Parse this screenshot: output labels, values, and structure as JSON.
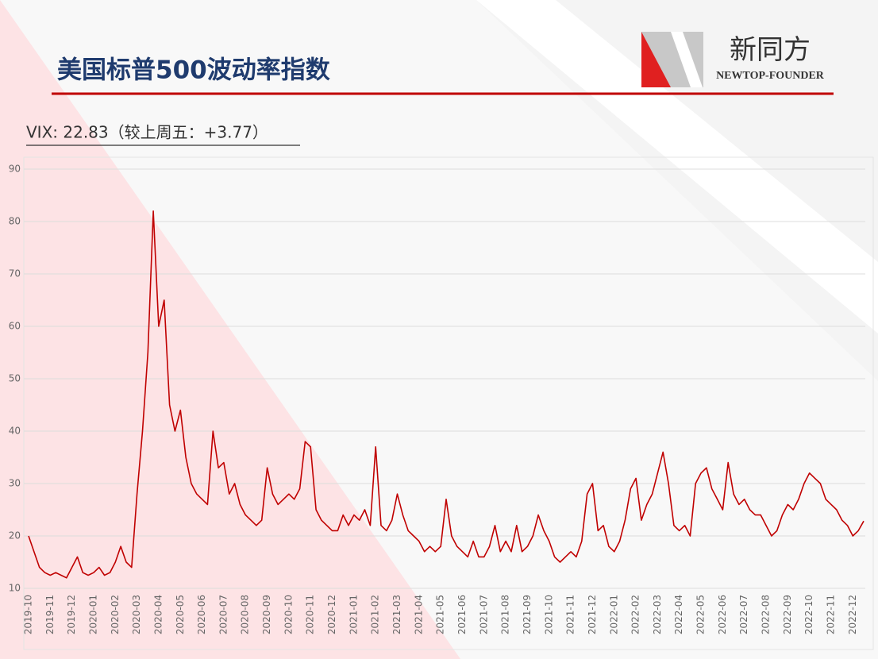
{
  "logo": {
    "name": "新同方",
    "subtitle": "NEWTOP-FOUNDER"
  },
  "chart_data": {
    "type": "line",
    "title": "美国标普500波动率指数",
    "subtitle": "VIX: 22.83（较上周五：+3.77）",
    "categories": [
      "2019-10",
      null,
      null,
      null,
      "2019-11",
      null,
      null,
      null,
      "2019-12",
      null,
      null,
      null,
      "2020-01",
      null,
      null,
      null,
      "2020-02",
      null,
      null,
      null,
      "2020-03",
      null,
      null,
      null,
      "2020-04",
      null,
      null,
      null,
      "2020-05",
      null,
      null,
      null,
      "2020-06",
      null,
      null,
      null,
      "2020-07",
      null,
      null,
      null,
      "2020-08",
      null,
      null,
      null,
      "2020-09",
      null,
      null,
      null,
      "2020-10",
      null,
      null,
      null,
      "2020-11",
      null,
      null,
      null,
      "2020-12",
      null,
      null,
      null,
      "2021-01",
      null,
      null,
      null,
      "2021-02",
      null,
      null,
      null,
      "2021-03",
      null,
      null,
      null,
      "2021-04",
      null,
      null,
      null,
      "2021-05",
      null,
      null,
      null,
      "2021-06",
      null,
      null,
      null,
      "2021-07",
      null,
      null,
      null,
      "2021-08",
      null,
      null,
      null,
      "2021-09",
      null,
      null,
      null,
      "2021-10",
      null,
      null,
      null,
      "2021-11",
      null,
      null,
      null,
      "2021-12",
      null,
      null,
      null,
      "2022-01",
      null,
      null,
      null,
      "2022-02",
      null,
      null,
      null,
      "2022-03",
      null,
      null,
      null,
      "2022-04",
      null,
      null,
      null,
      "2022-05",
      null,
      null,
      null,
      "2022-06",
      null,
      null,
      null,
      "2022-07",
      null,
      null,
      null,
      "2022-08",
      null,
      null,
      null,
      "2022-09",
      null,
      null,
      null,
      "2022-10",
      null,
      null,
      null,
      "2022-11",
      null,
      null,
      null,
      "2022-12",
      null,
      null
    ],
    "series": [
      {
        "name": "VIX",
        "color": "#c00000",
        "values": [
          20,
          17,
          14,
          13,
          12.5,
          13,
          12.5,
          12,
          14,
          16,
          13,
          12.5,
          13,
          14,
          12.5,
          13,
          15,
          18,
          15,
          14,
          28,
          40,
          55,
          82,
          60,
          65,
          45,
          40,
          44,
          35,
          30,
          28,
          27,
          26,
          40,
          33,
          34,
          28,
          30,
          26,
          24,
          23,
          22,
          23,
          33,
          28,
          26,
          27,
          28,
          27,
          29,
          38,
          37,
          25,
          23,
          22,
          21,
          21,
          24,
          22,
          24,
          23,
          25,
          22,
          37,
          22,
          21,
          23,
          28,
          24,
          21,
          20,
          19,
          17,
          18,
          17,
          18,
          27,
          20,
          18,
          17,
          16,
          19,
          16,
          16,
          18,
          22,
          17,
          19,
          17,
          22,
          17,
          18,
          20,
          24,
          21,
          19,
          16,
          15,
          16,
          17,
          16,
          19,
          28,
          30,
          21,
          22,
          18,
          17,
          19,
          23,
          29,
          31,
          23,
          26,
          28,
          32,
          36,
          30,
          22,
          21,
          22,
          20,
          30,
          32,
          33,
          29,
          27,
          25,
          34,
          28,
          26,
          27,
          25,
          24,
          24,
          22,
          20,
          21,
          24,
          26,
          25,
          27,
          30,
          32,
          31,
          30,
          27,
          26,
          25,
          23,
          22,
          20,
          21,
          22.83
        ]
      }
    ],
    "ylim": [
      10,
      90
    ],
    "yticks": [
      10,
      20,
      30,
      40,
      50,
      60,
      70,
      80,
      90
    ],
    "grid": true
  }
}
